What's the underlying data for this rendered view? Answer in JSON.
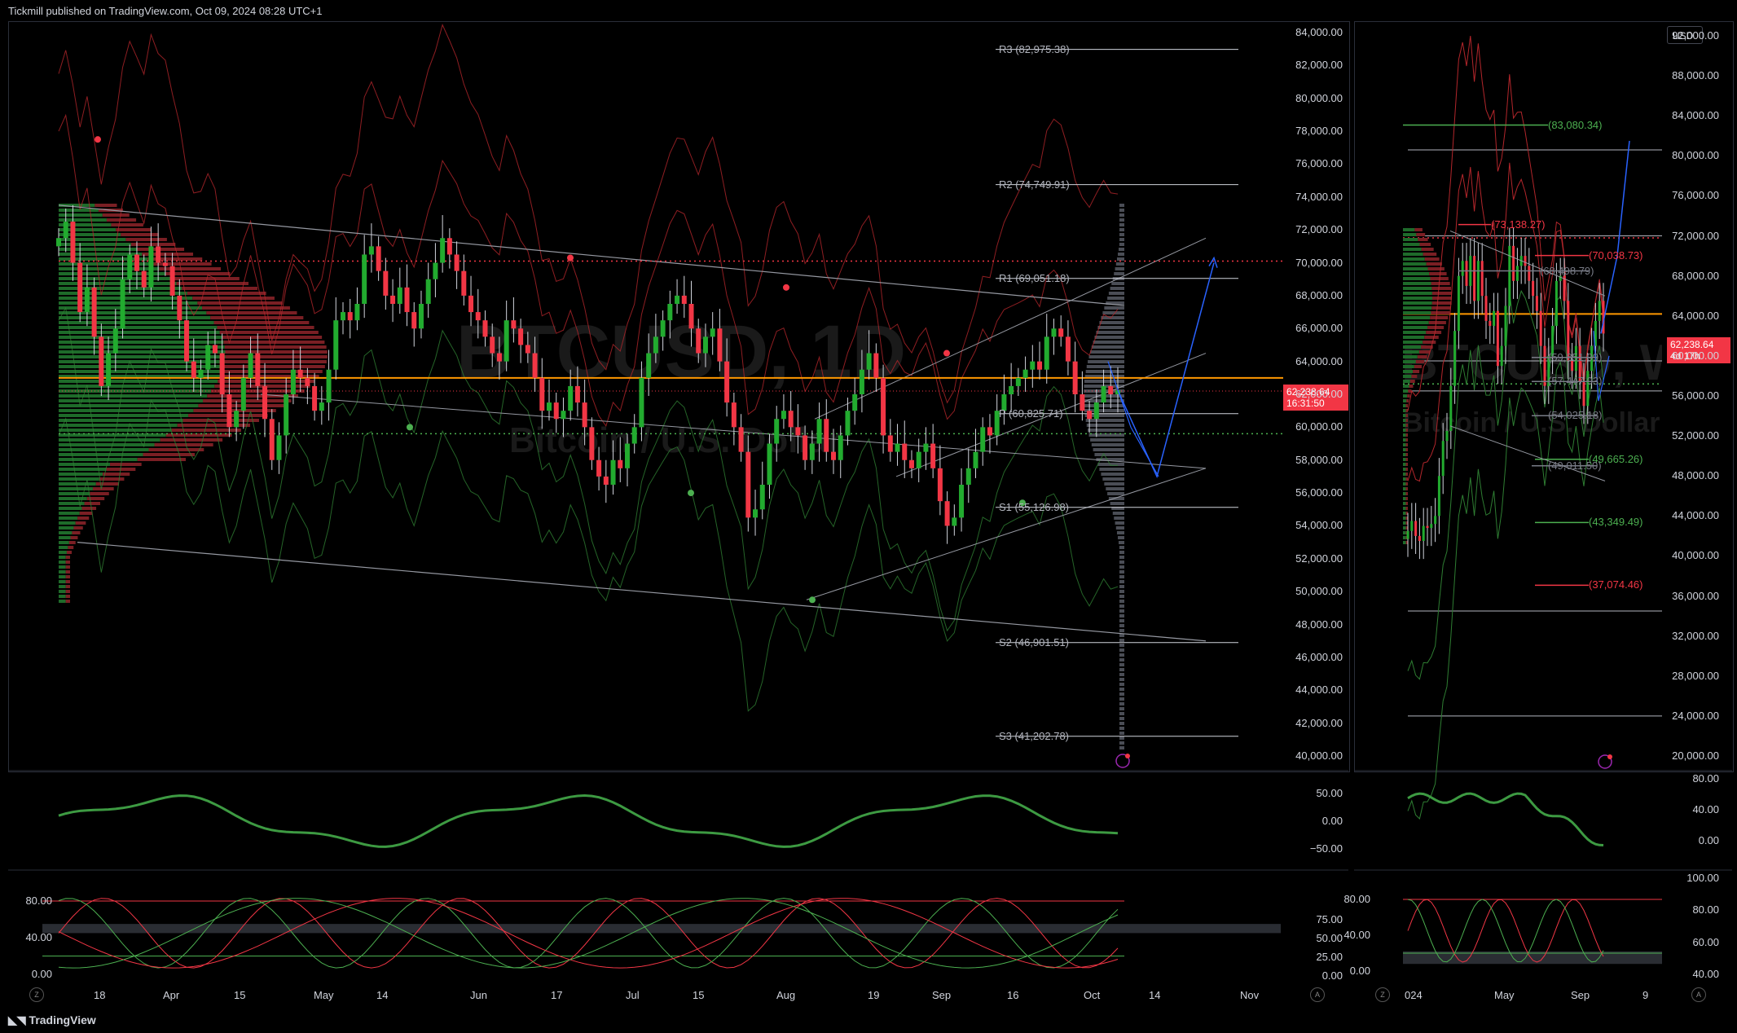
{
  "header": {
    "publisher": "Tickmill published on TradingView.com, Oct 09, 2024 08:28 UTC+1"
  },
  "footer": {
    "brand": "TradingView"
  },
  "left_chart": {
    "watermark_symbol": "BTCUSD, 1D",
    "watermark_name": "Bitcoin / U.S. Dollar",
    "price_axis": [
      "84,000.00",
      "82,000.00",
      "80,000.00",
      "78,000.00",
      "76,000.00",
      "74,000.00",
      "72,000.00",
      "70,000.00",
      "68,000.00",
      "66,000.00",
      "64,000.00",
      "62,000.00",
      "60,000.00",
      "58,000.00",
      "56,000.00",
      "54,000.00",
      "52,000.00",
      "50,000.00",
      "48,000.00",
      "46,000.00",
      "44,000.00",
      "42,000.00",
      "40,000.00"
    ],
    "price_tag": {
      "value": "62,238.64",
      "countdown": "16:31:50",
      "color": "#f23645"
    },
    "pivots": [
      {
        "label": "R3 (82,975.38)",
        "value": 82975.38
      },
      {
        "label": "R2 (74,749.91)",
        "value": 74749.91
      },
      {
        "label": "R1 (69,051.18)",
        "value": 69051.18
      },
      {
        "label": "P (60,825.71)",
        "value": 60825.71
      },
      {
        "label": "S1 (55,126.98)",
        "value": 55126.98
      },
      {
        "label": "S2 (46,901.51)",
        "value": 46901.51
      },
      {
        "label": "S3 (41,202.78)",
        "value": 41202.78
      }
    ],
    "x_axis": [
      "18",
      "Apr",
      "15",
      "May",
      "14",
      "Jun",
      "17",
      "Jul",
      "15",
      "Aug",
      "19",
      "Sep",
      "16",
      "Oct",
      "14",
      "Nov"
    ],
    "osc1_axis": [
      "50.00",
      "0.00",
      "−50.00"
    ],
    "osc2_axis_left": [
      "80.00",
      "40.00",
      "0.00"
    ],
    "osc2_axis_right": [
      "75.00",
      "50.00",
      "25.00",
      "0.00"
    ],
    "axis_buttons": [
      "Z",
      "A"
    ]
  },
  "right_chart": {
    "watermark_symbol": "BTCUSD, W",
    "watermark_name": "Bitcoin / U.S. Dollar",
    "currency_button": "USD",
    "price_axis": [
      "92,000.00",
      "88,000.00",
      "84,000.00",
      "80,000.00",
      "76,000.00",
      "72,000.00",
      "68,000.00",
      "64,000.00",
      "60,000.00",
      "56,000.00",
      "52,000.00",
      "48,000.00",
      "44,000.00",
      "40,000.00",
      "36,000.00",
      "32,000.00",
      "28,000.00",
      "24,000.00",
      "20,000.00"
    ],
    "price_tag": {
      "value": "62,238.64",
      "countdown": "4d 17h",
      "color": "#f23645"
    },
    "levels": [
      {
        "label": "(83,080.34)",
        "value": 83080.34,
        "color": "#4caf50"
      },
      {
        "label": "(73,138.27)",
        "value": 73138.27,
        "color": "#f23645"
      },
      {
        "label": "(70,038.73)",
        "value": 70038.73,
        "color": "#f23645"
      },
      {
        "label": "(68,498.79)",
        "value": 68498.79,
        "color": "#787b86"
      },
      {
        "label": "(59,851.99)",
        "value": 59851.99,
        "color": "#787b86"
      },
      {
        "label": "(57,447.93)",
        "value": 57447.93,
        "color": "#787b86"
      },
      {
        "label": "(54,025.18)",
        "value": 54025.18,
        "color": "#787b86"
      },
      {
        "label": "(49,665.26)",
        "value": 49665.26,
        "color": "#4caf50"
      },
      {
        "label": "(49,011.50)",
        "value": 49011.5,
        "color": "#787b86"
      },
      {
        "label": "(43,349.49)",
        "value": 43349.49,
        "color": "#4caf50"
      },
      {
        "label": "(37,074.46)",
        "value": 37074.46,
        "color": "#f23645"
      }
    ],
    "x_axis": [
      "024",
      "May",
      "Sep",
      "9"
    ],
    "osc1_axis": [
      "80.00",
      "40.00",
      "0.00"
    ],
    "osc2_axis_left": [
      "80.00",
      "40.00",
      "0.00"
    ],
    "osc2_axis_right": [
      "100.00",
      "80.00",
      "60.00",
      "40.00"
    ],
    "axis_buttons": [
      "Z",
      "A"
    ]
  },
  "chart_data": [
    {
      "type": "candlestick",
      "title": "BTCUSD, 1D",
      "ylim": [
        39500,
        85000
      ],
      "x_range": [
        "2024-03-12",
        "2024-11-01"
      ],
      "levels": {
        "poc": 63000,
        "red_dotted": 70100,
        "green_dotted": 59600,
        "orange": 63000
      },
      "candles_close_approx": [
        71500,
        72500,
        70000,
        67000,
        68500,
        65500,
        62500,
        64500,
        66000,
        69000,
        70500,
        69500,
        68500,
        71000,
        70000,
        69800,
        68000,
        66500,
        64000,
        63000,
        63500,
        65000,
        64500,
        62000,
        60000,
        61000,
        63000,
        64500,
        62500,
        60500,
        58000,
        59500,
        62000,
        63500,
        63000,
        62500,
        61000,
        61500,
        63500,
        66500,
        67000,
        66500,
        67500,
        70500,
        71000,
        69500,
        68000,
        67500,
        68500,
        67000,
        66000,
        67500,
        69000,
        70000,
        71500,
        70500,
        69500,
        68000,
        67000,
        66500,
        65500,
        64500,
        64000,
        66500,
        66000,
        65000,
        64500,
        63000,
        61000,
        61500,
        60500,
        61000,
        62500,
        61500,
        60000,
        58000,
        57000,
        56500,
        58000,
        57500,
        59000,
        60000,
        63000,
        64500,
        65500,
        66500,
        67500,
        68000,
        67500,
        66000,
        64500,
        65500,
        66000,
        64000,
        61500,
        60000,
        58500,
        54500,
        55000,
        56500,
        59000,
        60500,
        61000,
        60000,
        59500,
        58000,
        59000,
        60500,
        58500,
        58000,
        59500,
        61000,
        62000,
        63500,
        64500,
        63000,
        59500,
        58500,
        59000,
        58000,
        57500,
        58500,
        59000,
        57500,
        55500,
        54000,
        54500,
        56500,
        57500,
        58500,
        60000,
        59500,
        61000,
        62000,
        62500,
        63000,
        63500,
        64000,
        63500,
        65500,
        66000,
        65500,
        64000,
        62000,
        61000,
        60500,
        61500,
        62500,
        62000,
        62238.64
      ]
    },
    {
      "type": "candlestick",
      "title": "BTCUSD, W",
      "ylim": [
        19000,
        94000
      ],
      "x_range": [
        "2023-12-01",
        "2024-10-31"
      ],
      "candles_close_approx": [
        42500,
        43500,
        42000,
        41500,
        43000,
        42800,
        43200,
        44000,
        48000,
        51500,
        52500,
        57000,
        62500,
        68000,
        69500,
        67000,
        70000,
        65500,
        69500,
        66000,
        63500,
        63000,
        64500,
        59000,
        61000,
        65000,
        71000,
        67500,
        69000,
        70000,
        69000,
        67500,
        66000,
        64500,
        61000,
        57000,
        60000,
        63000,
        67500,
        68000,
        65500,
        59500,
        58500,
        61000,
        57500,
        55000,
        58500,
        61000,
        63500,
        65500,
        62238.64
      ]
    }
  ]
}
